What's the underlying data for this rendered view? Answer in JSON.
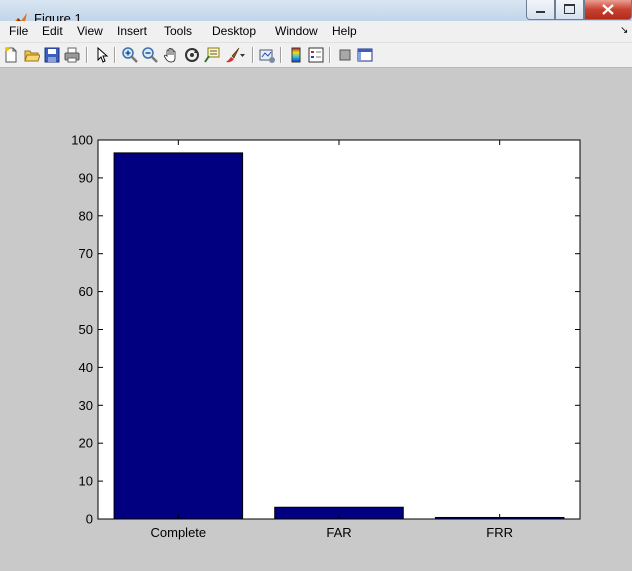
{
  "window": {
    "title": "Figure 1"
  },
  "menu": [
    "File",
    "Edit",
    "View",
    "Insert",
    "Tools",
    "Desktop",
    "Window",
    "Help"
  ],
  "toolbar": {
    "icons": [
      "new-figure-icon",
      "open-file-icon",
      "save-icon",
      "print-icon",
      "pointer-icon",
      "zoom-in-icon",
      "zoom-out-icon",
      "pan-hand-icon",
      "rotate-3d-icon",
      "data-cursor-icon",
      "brush-icon",
      "dropdown-arrow-icon",
      "link-plot-icon",
      "colorbar-icon",
      "legend-icon",
      "hide-plot-tools-icon",
      "show-plot-tools-icon"
    ]
  },
  "colors": {
    "bar": "#000080",
    "axes_bg": "#ffffff",
    "figure_bg": "#c9c9c9"
  },
  "chart_data": {
    "type": "bar",
    "categories": [
      "Complete",
      "FAR",
      "FRR"
    ],
    "values": [
      96.6,
      3.1,
      0.4
    ],
    "ylim": [
      0,
      100
    ],
    "yticks": [
      "0",
      "10",
      "20",
      "30",
      "40",
      "50",
      "60",
      "70",
      "80",
      "90",
      "100"
    ],
    "title": "",
    "xlabel": "",
    "ylabel": "",
    "grid": false
  }
}
